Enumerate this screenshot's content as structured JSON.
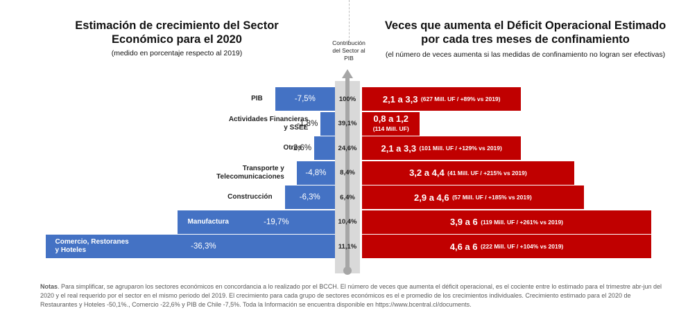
{
  "left_panel": {
    "title_line1": "Estimación de crecimiento del Sector",
    "title_line2": "Económico para el 2020",
    "subtitle": "(medido en porcentaje respecto al 2019)"
  },
  "right_panel": {
    "title_line1": "Veces que aumenta el Déficit Operacional Estimado",
    "title_line2": "por cada tres meses de confinamiento",
    "subtitle": "(el número de veces aumenta si las medidas de confinamiento no logran ser efectivas)"
  },
  "contribution_header": {
    "line1": "Contribución",
    "line2": "del Sector al",
    "line3": "PIB"
  },
  "chart_data": {
    "type": "bar",
    "categories": [
      "PIB",
      "Actividades Financieras y SSEE",
      "Otros",
      "Transporte y Telecomunicaciones",
      "Construcción",
      "Manufactura",
      "Comercio, Restoranes y Hoteles"
    ],
    "category_lines": [
      [
        "PIB"
      ],
      [
        "Actividades Financieras",
        "y SSEE"
      ],
      [
        "Otros"
      ],
      [
        "Transporte y",
        "Telecomunicaciones"
      ],
      [
        "Construcción"
      ],
      [
        "Manufactura"
      ],
      [
        "Comercio, Restoranes",
        "y Hoteles"
      ]
    ],
    "growth": [
      -7.5,
      -1.8,
      -2.6,
      -4.8,
      -6.3,
      -19.7,
      -36.3
    ],
    "growth_labels": [
      "-7,5%",
      "-1,8%",
      "-2,6%",
      "-4,8%",
      "-6,3%",
      "-19,7%",
      "-36,3%"
    ],
    "contribution_labels": [
      "100%",
      "39,1%",
      "24,6%",
      "8,4%",
      "6,4%",
      "10,4%",
      "11,1%"
    ],
    "deficit_low": [
      2.1,
      0.8,
      2.1,
      3.2,
      2.9,
      3.9,
      4.6
    ],
    "deficit_high": [
      3.3,
      1.2,
      3.3,
      4.4,
      4.6,
      6,
      6
    ],
    "deficit_range_labels": [
      "2,1 a 3,3",
      "0,8 a 1,2",
      "2,1 a 3,3",
      "3,2 a 4,4",
      "2,9 a 4,6",
      "3,9 a 6",
      "4,6 a 6"
    ],
    "deficit_detail_labels": [
      "(627 Mill. UF / +89% vs 2019)",
      "(114 Mill. UF)",
      "(101 Mill. UF / +129% vs 2019)",
      "(41 Mill. UF / +215% vs 2019)",
      "(57 Mill. UF / +185% vs 2019)",
      "(119 Mill. UF / +261% vs 2019)",
      "(222 Mill. UF / +104% vs 2019)"
    ],
    "colors": {
      "growth": "#4472c4",
      "deficit": "#c00000",
      "contribution_band": "#d9d9d9",
      "arrow": "#a6a6a6"
    }
  },
  "notes": {
    "label": "Notas",
    "text": ". Para simplificar, se agruparon los sectores económicos en concordancia a lo realizado por el BCCH. El número de veces que aumenta el déficit operacional, es el cociente entre lo estimado para el trimestre abr-jun del 2020 y el real requerido por el sector en el mismo periodo del 2019. El crecimiento para cada grupo de sectores económicos es el e promedio de los crecimientos individuales. Crecimiento estimado para el 2020 de Restaurantes y Hoteles -50,1%., Comercio -22,6% y PIB de Chile -7,5%. Toda la Información se encuentra disponible en https://www.bcentral.cl/documents."
  }
}
